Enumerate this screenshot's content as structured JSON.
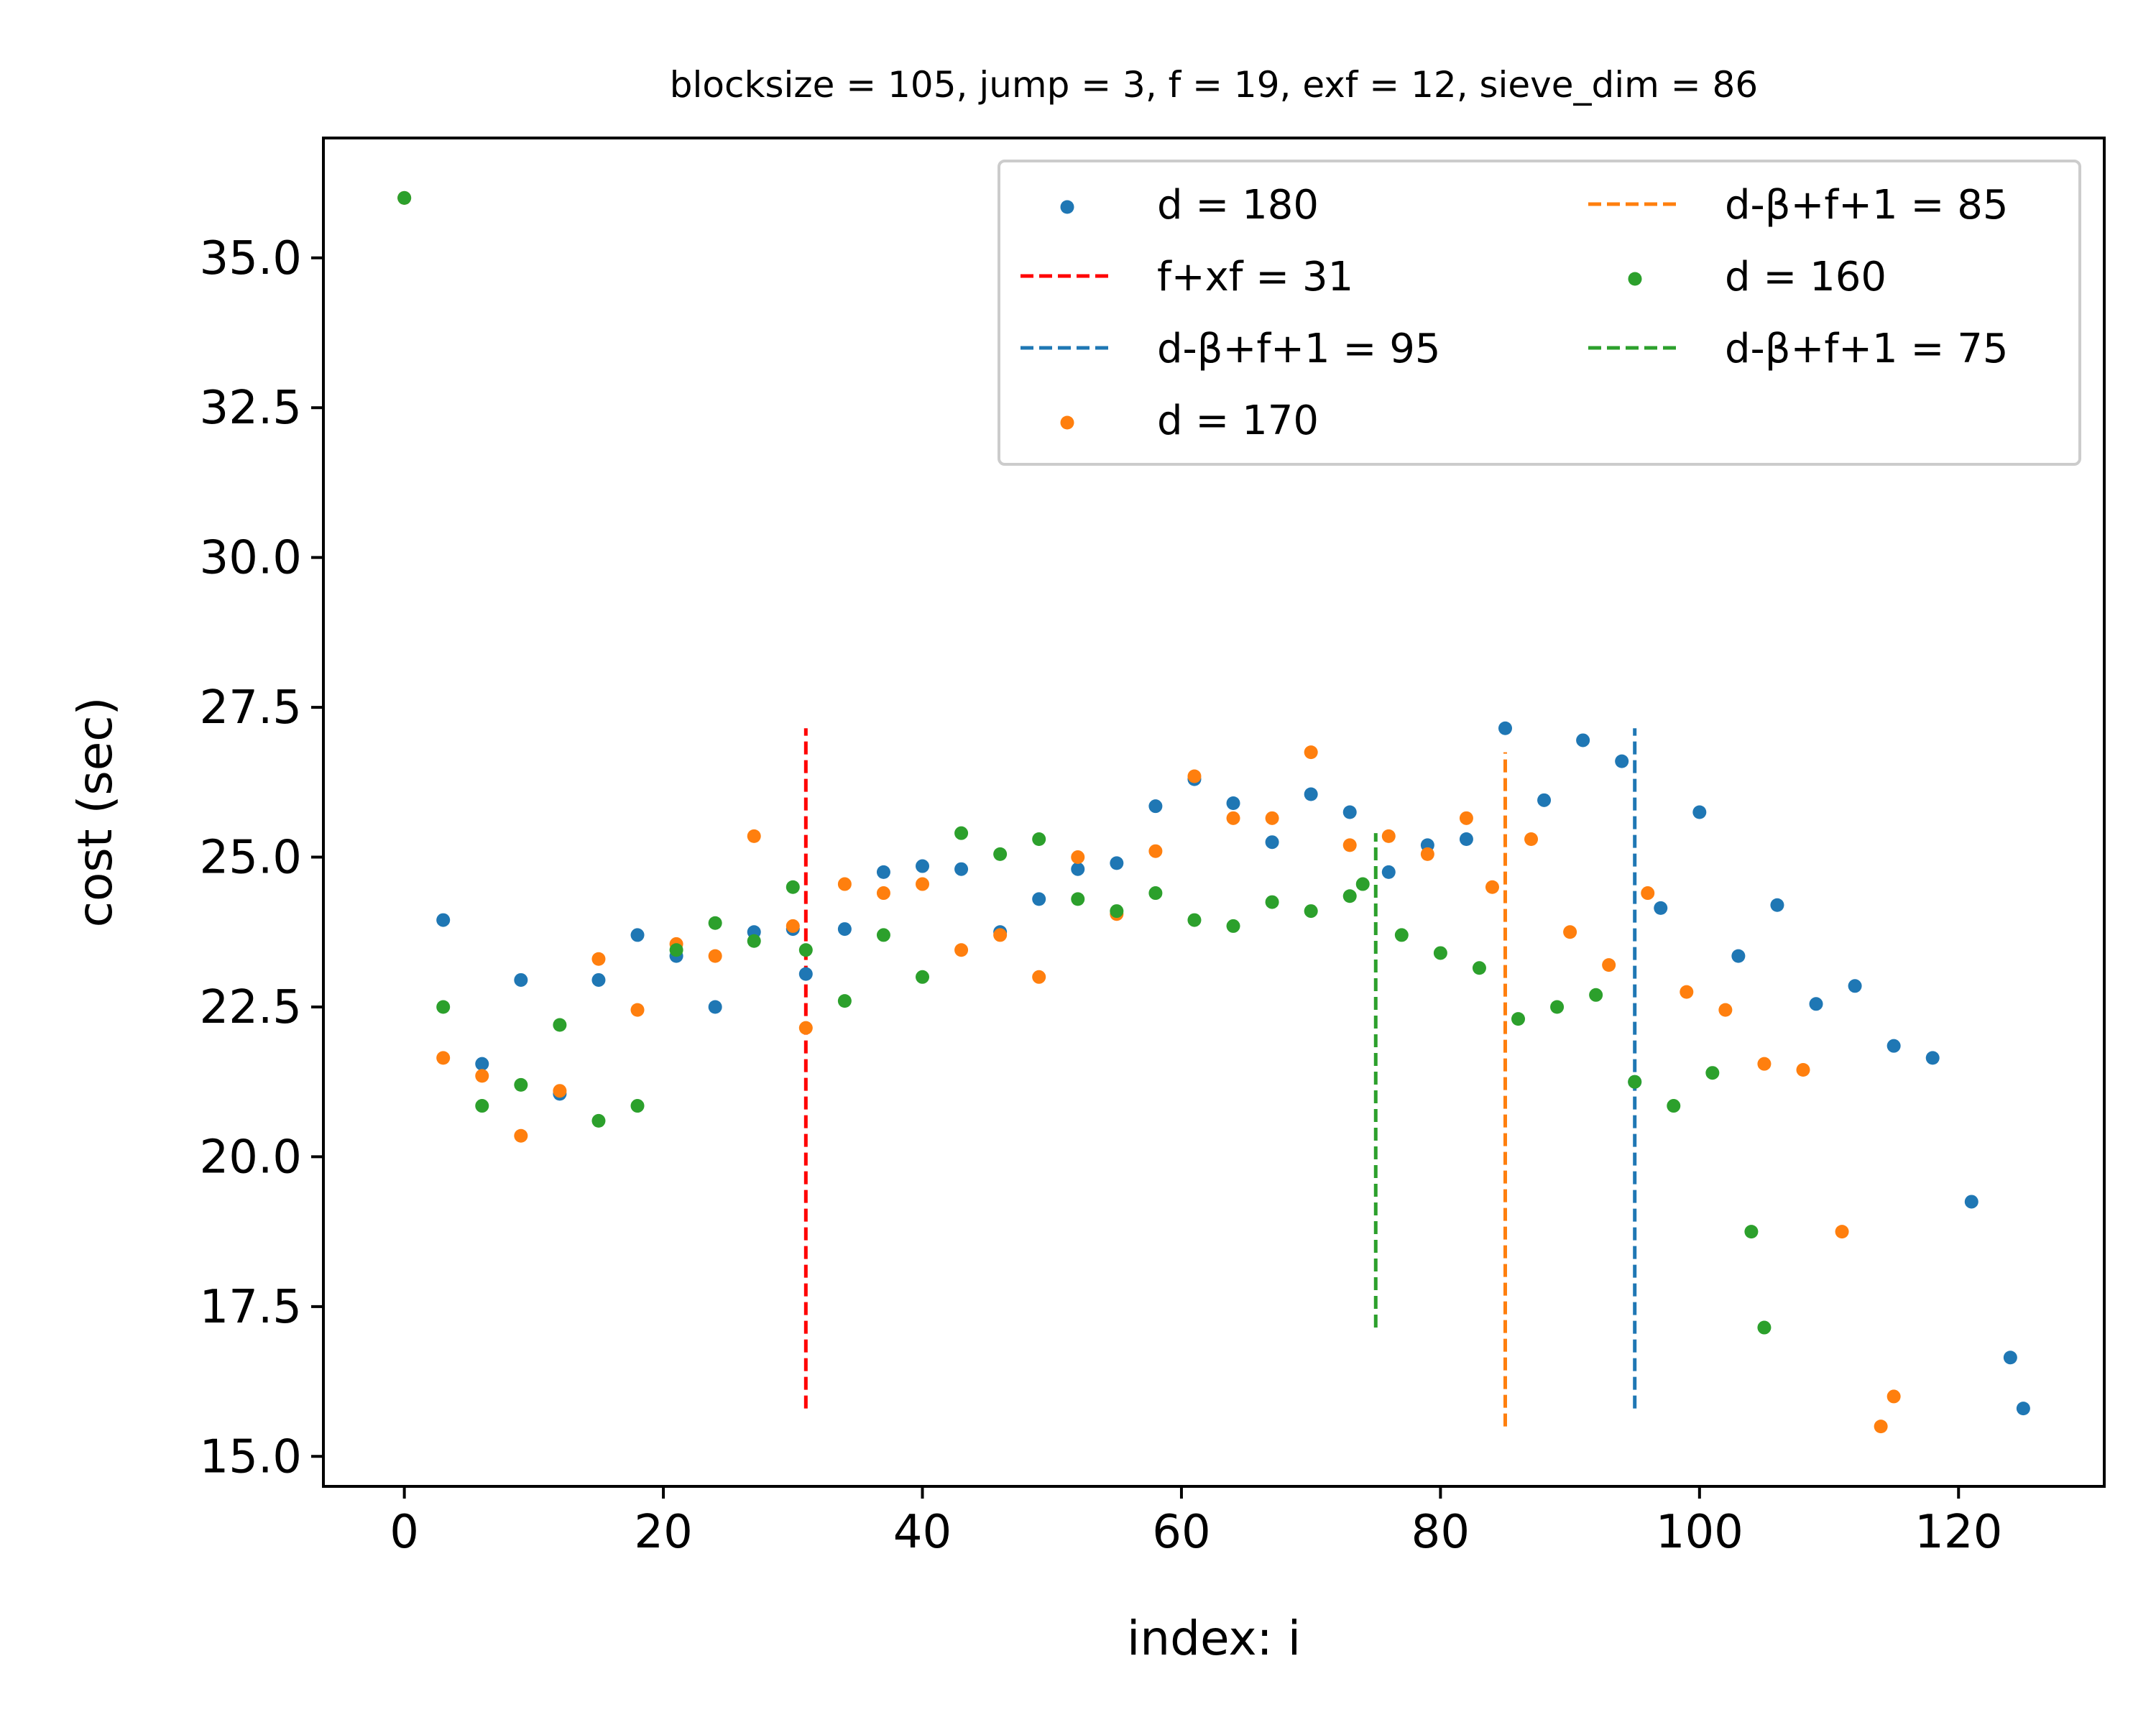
{
  "chart_data": {
    "type": "scatter",
    "title": "blocksize = 105, jump = 3, f = 19, exf = 12, sieve_dim = 86",
    "xlabel": "index: i",
    "ylabel": "cost (sec)",
    "xlim": [
      -6.25,
      131.25
    ],
    "ylim": [
      14.5,
      37.0
    ],
    "xticks": [
      0,
      20,
      40,
      60,
      80,
      100,
      120
    ],
    "xtick_labels": [
      "0",
      "20",
      "40",
      "60",
      "80",
      "100",
      "120"
    ],
    "yticks": [
      15.0,
      17.5,
      20.0,
      22.5,
      25.0,
      27.5,
      30.0,
      32.5,
      35.0
    ],
    "ytick_labels": [
      "15.0",
      "17.5",
      "20.0",
      "22.5",
      "25.0",
      "27.5",
      "30.0",
      "32.5",
      "35.0"
    ],
    "grid": false,
    "legend": {
      "position": "top-right",
      "columns": 2,
      "entries": [
        {
          "label": "d = 180",
          "kind": "scatter",
          "color": "#1f77b4"
        },
        {
          "label": "f+xf = 31",
          "kind": "dashed",
          "color": "#ff0000"
        },
        {
          "label": "d-β+f+1 = 95",
          "kind": "dashed",
          "color": "#1f77b4"
        },
        {
          "label": "d = 170",
          "kind": "scatter",
          "color": "#ff7f0e"
        },
        {
          "label": "d-β+f+1 = 85",
          "kind": "dashed",
          "color": "#ff7f0e"
        },
        {
          "label": "d = 160",
          "kind": "scatter",
          "color": "#2ca02c"
        },
        {
          "label": "d-β+f+1 = 75",
          "kind": "dashed",
          "color": "#2ca02c"
        }
      ]
    },
    "series": [
      {
        "name": "d = 180",
        "color": "#1f77b4",
        "x": [
          0,
          3,
          6,
          9,
          12,
          15,
          18,
          21,
          24,
          27,
          30,
          31,
          34,
          37,
          40,
          43,
          46,
          49,
          52,
          55,
          58,
          61,
          64,
          67,
          70,
          73,
          76,
          79,
          82,
          85,
          88,
          91,
          94,
          95,
          97,
          100,
          103,
          106,
          109,
          112,
          115,
          118,
          121,
          124,
          125
        ],
        "y": [
          36.0,
          23.95,
          21.55,
          22.95,
          21.05,
          22.95,
          23.7,
          23.35,
          22.5,
          23.75,
          23.8,
          23.05,
          23.8,
          24.75,
          24.85,
          24.8,
          23.75,
          24.3,
          24.8,
          24.9,
          25.85,
          26.3,
          25.9,
          25.25,
          26.05,
          25.75,
          24.75,
          25.2,
          25.3,
          27.15,
          25.95,
          26.95,
          26.6,
          21.25,
          24.15,
          25.75,
          23.35,
          24.2,
          22.55,
          22.85,
          21.85,
          21.65,
          19.25,
          16.65,
          15.8
        ]
      },
      {
        "name": "d = 170",
        "color": "#ff7f0e",
        "x": [
          0,
          3,
          6,
          9,
          12,
          15,
          18,
          21,
          24,
          27,
          30,
          31,
          34,
          37,
          40,
          43,
          46,
          49,
          52,
          55,
          58,
          61,
          64,
          67,
          70,
          73,
          76,
          79,
          82,
          84,
          87,
          90,
          93,
          96,
          99,
          102,
          105,
          108,
          111,
          114,
          115
        ],
        "y": [
          36.0,
          21.65,
          21.35,
          20.35,
          21.1,
          23.3,
          22.45,
          23.55,
          23.35,
          25.35,
          23.85,
          22.15,
          24.55,
          24.4,
          24.55,
          23.45,
          23.7,
          23.0,
          25.0,
          24.05,
          25.1,
          26.35,
          25.65,
          25.65,
          26.75,
          25.2,
          25.35,
          25.05,
          25.65,
          24.5,
          25.3,
          23.75,
          23.2,
          24.4,
          22.75,
          22.45,
          21.55,
          21.45,
          18.75,
          15.5,
          16.0
        ]
      },
      {
        "name": "d = 160",
        "color": "#2ca02c",
        "x": [
          0,
          3,
          6,
          9,
          12,
          15,
          18,
          21,
          24,
          27,
          30,
          31,
          34,
          37,
          40,
          43,
          46,
          49,
          52,
          55,
          58,
          61,
          64,
          67,
          70,
          73,
          74,
          77,
          80,
          83,
          86,
          89,
          92,
          95,
          98,
          101,
          104,
          105
        ],
        "y": [
          36.0,
          22.5,
          20.85,
          21.2,
          22.2,
          20.6,
          20.85,
          23.45,
          23.9,
          23.6,
          24.5,
          23.45,
          22.6,
          23.7,
          23.0,
          25.4,
          25.05,
          25.3,
          24.3,
          24.1,
          24.4,
          23.95,
          23.85,
          24.25,
          24.1,
          24.35,
          24.55,
          23.7,
          23.4,
          23.15,
          22.3,
          22.5,
          22.7,
          21.25,
          20.85,
          21.4,
          18.75,
          17.15
        ]
      }
    ],
    "vlines": [
      {
        "name": "f+xf = 31",
        "x": 31,
        "ymin": 15.8,
        "ymax": 27.15,
        "color": "#ff0000"
      },
      {
        "name": "d-β+f+1 = 95",
        "x": 95,
        "ymin": 15.8,
        "ymax": 27.15,
        "color": "#1f77b4"
      },
      {
        "name": "d-β+f+1 = 85",
        "x": 85,
        "ymin": 15.5,
        "ymax": 26.75,
        "color": "#ff7f0e"
      },
      {
        "name": "d-β+f+1 = 75",
        "x": 75,
        "ymin": 17.15,
        "ymax": 25.4,
        "color": "#2ca02c"
      }
    ]
  }
}
